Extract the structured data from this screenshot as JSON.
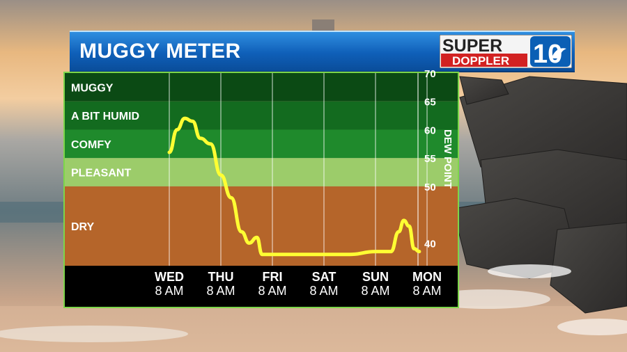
{
  "header": {
    "title": "MUGGY METER",
    "logo_word_top": "SUPER",
    "logo_word_bottom": "DOPPLER",
    "logo_number": "10"
  },
  "colors": {
    "muggy": "#0b4a14",
    "humid": "#136b1f",
    "comfy": "#1f8a2c",
    "pleasant": "#9ccc6a",
    "dry": "#b5652a",
    "line": "#ffff33",
    "axis_bg": "#000000"
  },
  "chart_data": {
    "type": "line",
    "ylabel": "DEW POINT",
    "ylim": [
      36,
      70
    ],
    "yticks": [
      40,
      50,
      55,
      60,
      65,
      70
    ],
    "bands": [
      {
        "label": "MUGGY",
        "from": 65,
        "to": 70
      },
      {
        "label": "A BIT HUMID",
        "from": 60,
        "to": 65
      },
      {
        "label": "COMFY",
        "from": 55,
        "to": 60
      },
      {
        "label": "PLEASANT",
        "from": 50,
        "to": 55
      },
      {
        "label": "DRY",
        "from": 36,
        "to": 50
      }
    ],
    "x_ticks": [
      {
        "day": "WED",
        "time": "8 AM"
      },
      {
        "day": "THU",
        "time": "8 AM"
      },
      {
        "day": "FRI",
        "time": "8 AM"
      },
      {
        "day": "SAT",
        "time": "8 AM"
      },
      {
        "day": "SUN",
        "time": "8 AM"
      },
      {
        "day": "MON",
        "time": "8 AM"
      }
    ],
    "series": [
      {
        "x": [
          0,
          0.15,
          0.3,
          0.45,
          0.6,
          0.8,
          1.0,
          1.2,
          1.4,
          1.55,
          1.7,
          1.8,
          1.9,
          2.0,
          2.5,
          3.0,
          3.5,
          4.0,
          4.3,
          4.45,
          4.55,
          4.65,
          4.75,
          4.85
        ],
        "y": [
          56,
          60,
          62,
          61.5,
          58.5,
          57.5,
          52,
          48,
          42,
          40,
          41,
          38,
          38,
          38,
          38,
          38,
          38,
          38.5,
          38.5,
          42,
          44,
          43,
          39,
          38.5
        ]
      }
    ]
  }
}
